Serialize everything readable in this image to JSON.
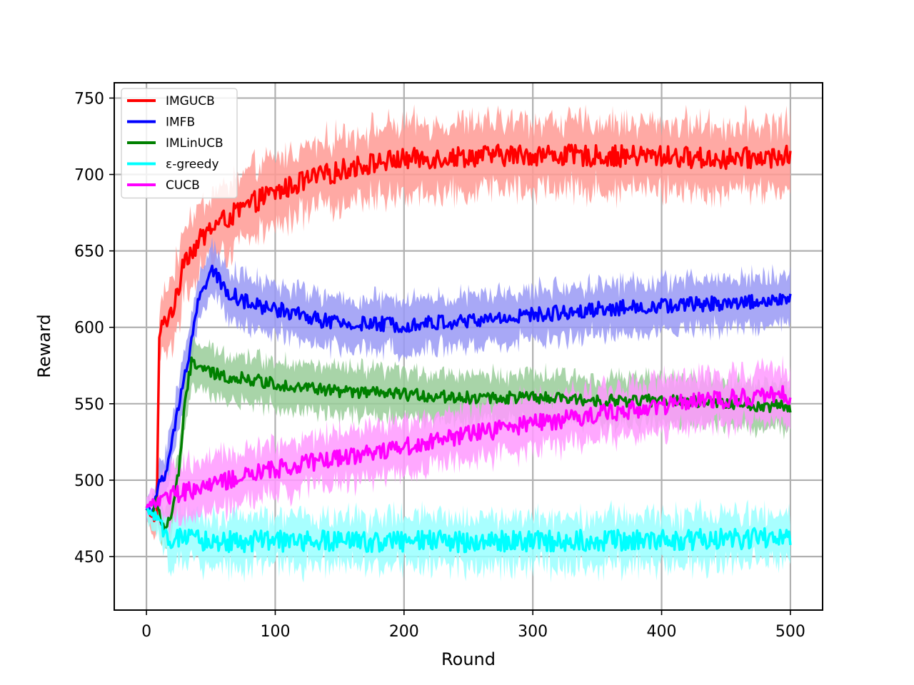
{
  "chart_data": {
    "type": "line",
    "title": "",
    "xlabel": "Round",
    "ylabel": "Reward",
    "xlim": [
      -25,
      525
    ],
    "ylim": [
      415,
      760
    ],
    "x_ticks": [
      0,
      100,
      200,
      300,
      400,
      500
    ],
    "y_ticks": [
      450,
      500,
      550,
      600,
      650,
      700,
      750
    ],
    "grid": true,
    "legend_position": "top-left",
    "series": [
      {
        "name": "IMGUCB",
        "color": "#ff0000",
        "band_color": "#ff9a94",
        "noise": 7,
        "band": 22,
        "x": [
          0,
          8,
          10,
          12,
          20,
          25,
          28,
          35,
          40,
          50,
          60,
          70,
          80,
          90,
          100,
          120,
          140,
          160,
          180,
          200,
          250,
          300,
          350,
          400,
          450,
          500
        ],
        "y": [
          480,
          476,
          595,
          600,
          612,
          622,
          645,
          650,
          655,
          665,
          670,
          675,
          680,
          685,
          688,
          695,
          700,
          705,
          708,
          710,
          712,
          713,
          712,
          712,
          710,
          712
        ]
      },
      {
        "name": "IMFB",
        "color": "#0000ff",
        "band_color": "#9999f5",
        "noise": 5,
        "band": 16,
        "x": [
          0,
          5,
          10,
          15,
          20,
          30,
          40,
          50,
          55,
          60,
          70,
          80,
          100,
          120,
          150,
          200,
          250,
          300,
          350,
          400,
          450,
          500
        ],
        "y": [
          482,
          478,
          500,
          505,
          525,
          570,
          615,
          640,
          632,
          625,
          620,
          615,
          612,
          608,
          602,
          602,
          604,
          608,
          612,
          614,
          616,
          618
        ]
      },
      {
        "name": "IMLinUCB",
        "color": "#008000",
        "band_color": "#99cc99",
        "noise": 4,
        "band": 15,
        "x": [
          0,
          5,
          8,
          12,
          15,
          20,
          25,
          30,
          35,
          40,
          50,
          60,
          80,
          100,
          150,
          200,
          250,
          300,
          350,
          400,
          450,
          500
        ],
        "y": [
          481,
          478,
          486,
          472,
          468,
          480,
          505,
          550,
          578,
          575,
          570,
          568,
          566,
          563,
          558,
          556,
          554,
          554,
          552,
          552,
          550,
          548
        ]
      },
      {
        "name": "ε-greedy",
        "color": "#00ffff",
        "band_color": "#99ffff",
        "noise": 7,
        "band": 16,
        "x": [
          0,
          5,
          10,
          15,
          20,
          30,
          50,
          100,
          200,
          300,
          400,
          500
        ],
        "y": [
          481,
          478,
          470,
          465,
          462,
          461,
          460,
          460,
          460,
          460,
          461,
          462
        ]
      },
      {
        "name": "CUCB",
        "color": "#ff00ff",
        "band_color": "#ff99ff",
        "noise": 6,
        "band": 17,
        "x": [
          0,
          10,
          20,
          50,
          100,
          150,
          200,
          250,
          300,
          350,
          400,
          450,
          500
        ],
        "y": [
          483,
          487,
          490,
          497,
          507,
          515,
          522,
          530,
          537,
          543,
          549,
          553,
          556
        ]
      }
    ]
  }
}
